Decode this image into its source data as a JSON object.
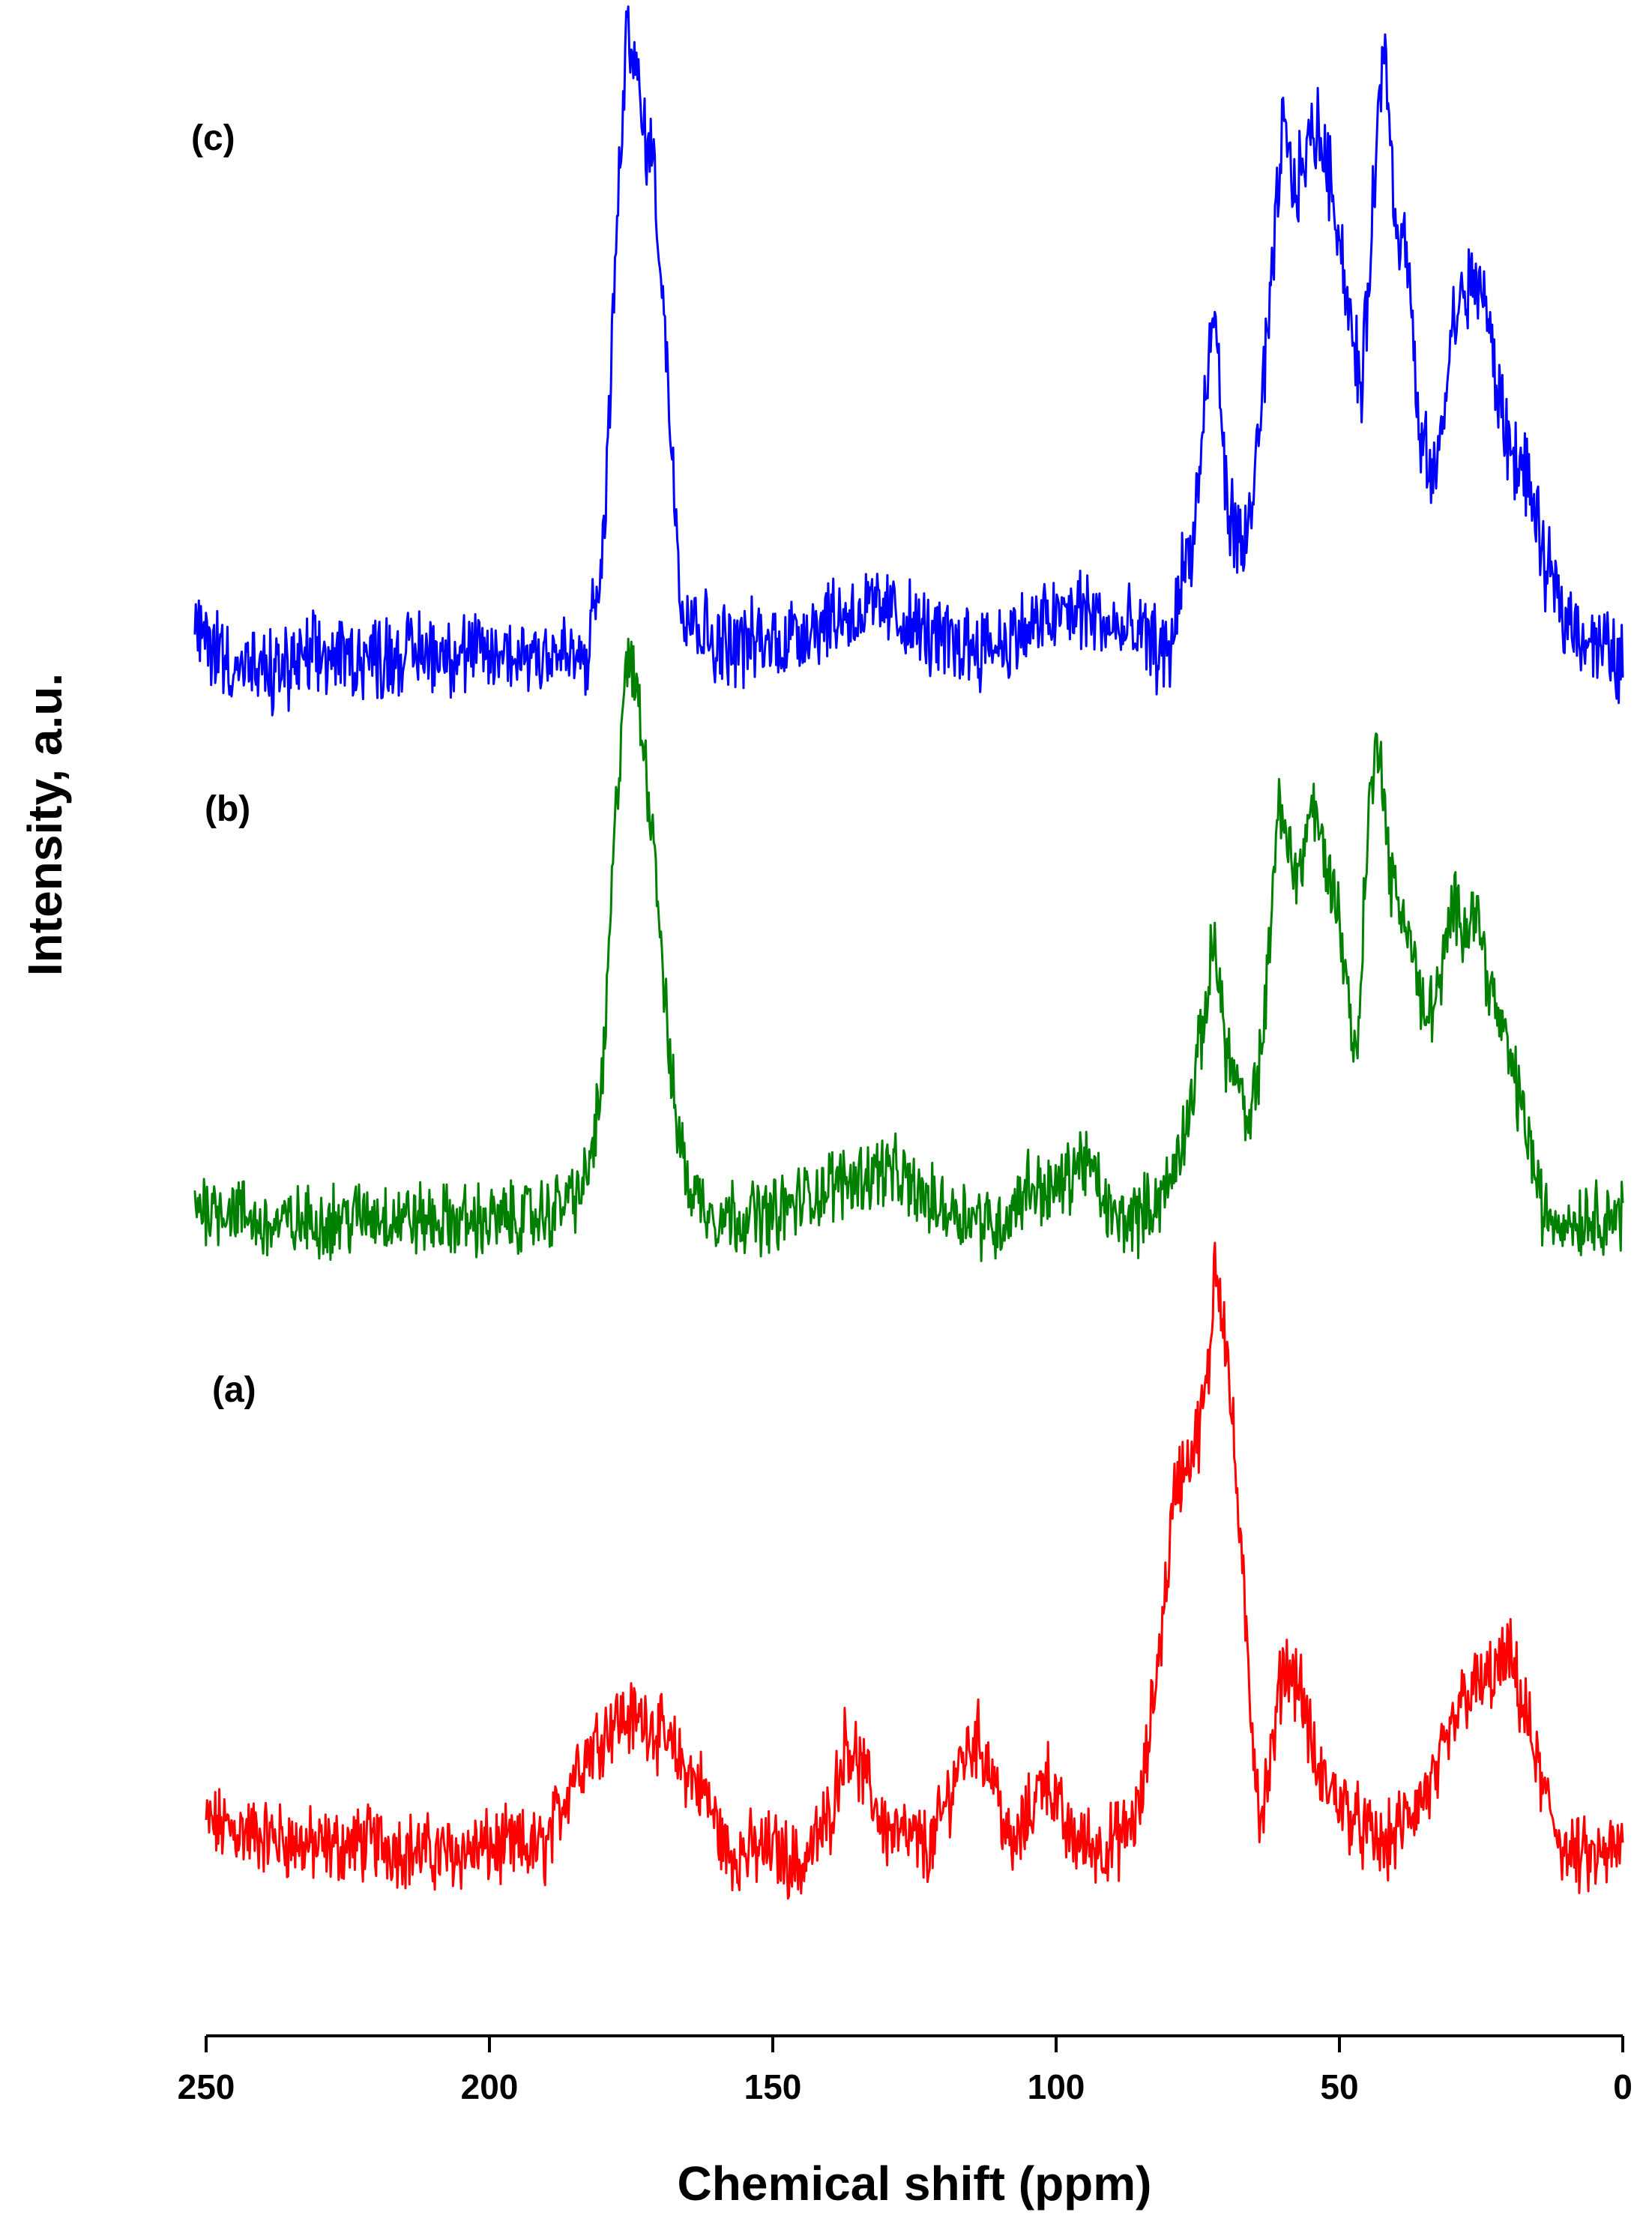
{
  "chart_data": {
    "type": "line",
    "title": "",
    "xlabel": "Chemical shift (ppm)",
    "ylabel": "Intensity, a.u.",
    "xlim": [
      250,
      0
    ],
    "x_reversed": true,
    "xticks": [
      250,
      200,
      150,
      100,
      50,
      0
    ],
    "yticks": [],
    "grid": false,
    "legend": "none",
    "series": [
      {
        "label": "(a)",
        "color": "#ff0000",
        "points": [
          [
            250,
            0.07
          ],
          [
            240,
            0.05
          ],
          [
            230,
            0.03
          ],
          [
            220,
            0.04
          ],
          [
            210,
            0.02
          ],
          [
            200,
            0.03
          ],
          [
            190,
            0.03
          ],
          [
            185,
            0.16
          ],
          [
            178,
            0.24
          ],
          [
            172,
            0.24
          ],
          [
            168,
            0.19
          ],
          [
            162,
            0.12
          ],
          [
            158,
            0.02
          ],
          [
            150,
            0.03
          ],
          [
            145,
            0.0
          ],
          [
            140,
            0.08
          ],
          [
            137,
            0.21
          ],
          [
            135,
            0.17
          ],
          [
            130,
            0.06
          ],
          [
            122,
            0.03
          ],
          [
            117,
            0.17
          ],
          [
            114,
            0.21
          ],
          [
            111,
            0.15
          ],
          [
            108,
            0.02
          ],
          [
            104,
            0.1
          ],
          [
            102,
            0.16
          ],
          [
            98,
            0.05
          ],
          [
            92,
            0.03
          ],
          [
            88,
            0.05
          ],
          [
            85,
            0.1
          ],
          [
            81,
            0.42
          ],
          [
            79,
            0.62
          ],
          [
            77,
            0.66
          ],
          [
            75,
            0.7
          ],
          [
            73,
            0.8
          ],
          [
            72,
            1.0
          ],
          [
            70,
            0.86
          ],
          [
            68,
            0.6
          ],
          [
            66,
            0.3
          ],
          [
            64,
            0.08
          ],
          [
            62,
            0.17
          ],
          [
            60,
            0.33
          ],
          [
            57,
            0.3
          ],
          [
            54,
            0.15
          ],
          [
            50,
            0.11
          ],
          [
            46,
            0.06
          ],
          [
            42,
            0.03
          ],
          [
            38,
            0.08
          ],
          [
            33,
            0.14
          ],
          [
            28,
            0.28
          ],
          [
            24,
            0.3
          ],
          [
            20,
            0.34
          ],
          [
            17,
            0.24
          ],
          [
            14,
            0.12
          ],
          [
            10,
            0.02
          ],
          [
            5,
            0.01
          ],
          [
            0,
            0.03
          ]
        ]
      },
      {
        "label": "(b)",
        "color": "#008000",
        "points": [
          [
            252,
            0.07
          ],
          [
            245,
            0.06
          ],
          [
            240,
            0.03
          ],
          [
            230,
            0.04
          ],
          [
            220,
            0.05
          ],
          [
            210,
            0.04
          ],
          [
            200,
            0.04
          ],
          [
            190,
            0.05
          ],
          [
            183,
            0.1
          ],
          [
            180,
            0.28
          ],
          [
            178,
            0.68
          ],
          [
            176,
            1.0
          ],
          [
            174,
            0.95
          ],
          [
            171,
            0.7
          ],
          [
            168,
            0.28
          ],
          [
            165,
            0.1
          ],
          [
            160,
            0.05
          ],
          [
            150,
            0.05
          ],
          [
            140,
            0.1
          ],
          [
            130,
            0.13
          ],
          [
            122,
            0.07
          ],
          [
            115,
            0.05
          ],
          [
            110,
            0.03
          ],
          [
            105,
            0.1
          ],
          [
            100,
            0.09
          ],
          [
            95,
            0.15
          ],
          [
            90,
            0.04
          ],
          [
            85,
            0.05
          ],
          [
            80,
            0.1
          ],
          [
            76,
            0.25
          ],
          [
            74,
            0.38
          ],
          [
            72,
            0.53
          ],
          [
            70,
            0.33
          ],
          [
            68,
            0.28
          ],
          [
            66,
            0.18
          ],
          [
            63,
            0.4
          ],
          [
            61,
            0.75
          ],
          [
            59,
            0.68
          ],
          [
            57,
            0.63
          ],
          [
            55,
            0.76
          ],
          [
            53,
            0.68
          ],
          [
            50,
            0.56
          ],
          [
            47,
            0.3
          ],
          [
            45,
            0.72
          ],
          [
            43,
            0.88
          ],
          [
            41,
            0.62
          ],
          [
            38,
            0.55
          ],
          [
            35,
            0.38
          ],
          [
            32,
            0.45
          ],
          [
            30,
            0.58
          ],
          [
            28,
            0.55
          ],
          [
            26,
            0.58
          ],
          [
            23,
            0.42
          ],
          [
            20,
            0.32
          ],
          [
            17,
            0.2
          ],
          [
            14,
            0.05
          ],
          [
            10,
            0.04
          ],
          [
            5,
            0.05
          ],
          [
            0,
            0.05
          ]
        ]
      },
      {
        "label": "(c)",
        "color": "#0000ff",
        "points": [
          [
            252,
            0.1
          ],
          [
            245,
            0.05
          ],
          [
            240,
            0.03
          ],
          [
            230,
            0.06
          ],
          [
            220,
            0.06
          ],
          [
            210,
            0.07
          ],
          [
            200,
            0.06
          ],
          [
            190,
            0.07
          ],
          [
            183,
            0.05
          ],
          [
            180,
            0.2
          ],
          [
            178,
            0.6
          ],
          [
            176,
            0.95
          ],
          [
            175,
            1.0
          ],
          [
            173,
            0.84
          ],
          [
            171,
            0.8
          ],
          [
            168,
            0.4
          ],
          [
            166,
            0.14
          ],
          [
            160,
            0.08
          ],
          [
            150,
            0.08
          ],
          [
            140,
            0.12
          ],
          [
            130,
            0.13
          ],
          [
            120,
            0.08
          ],
          [
            110,
            0.08
          ],
          [
            100,
            0.12
          ],
          [
            95,
            0.13
          ],
          [
            90,
            0.1
          ],
          [
            85,
            0.09
          ],
          [
            80,
            0.06
          ],
          [
            78,
            0.18
          ],
          [
            76,
            0.22
          ],
          [
            74,
            0.4
          ],
          [
            72,
            0.58
          ],
          [
            70,
            0.3
          ],
          [
            67,
            0.2
          ],
          [
            64,
            0.4
          ],
          [
            62,
            0.6
          ],
          [
            60,
            0.85
          ],
          [
            58,
            0.75
          ],
          [
            56,
            0.8
          ],
          [
            54,
            0.85
          ],
          [
            51,
            0.75
          ],
          [
            48,
            0.55
          ],
          [
            46,
            0.45
          ],
          [
            44,
            0.75
          ],
          [
            42,
            0.98
          ],
          [
            40,
            0.7
          ],
          [
            38,
            0.66
          ],
          [
            36,
            0.38
          ],
          [
            33,
            0.32
          ],
          [
            30,
            0.55
          ],
          [
            28,
            0.6
          ],
          [
            25,
            0.62
          ],
          [
            22,
            0.45
          ],
          [
            20,
            0.37
          ],
          [
            17,
            0.33
          ],
          [
            14,
            0.2
          ],
          [
            10,
            0.12
          ],
          [
            5,
            0.08
          ],
          [
            0,
            0.05
          ]
        ]
      }
    ]
  }
}
